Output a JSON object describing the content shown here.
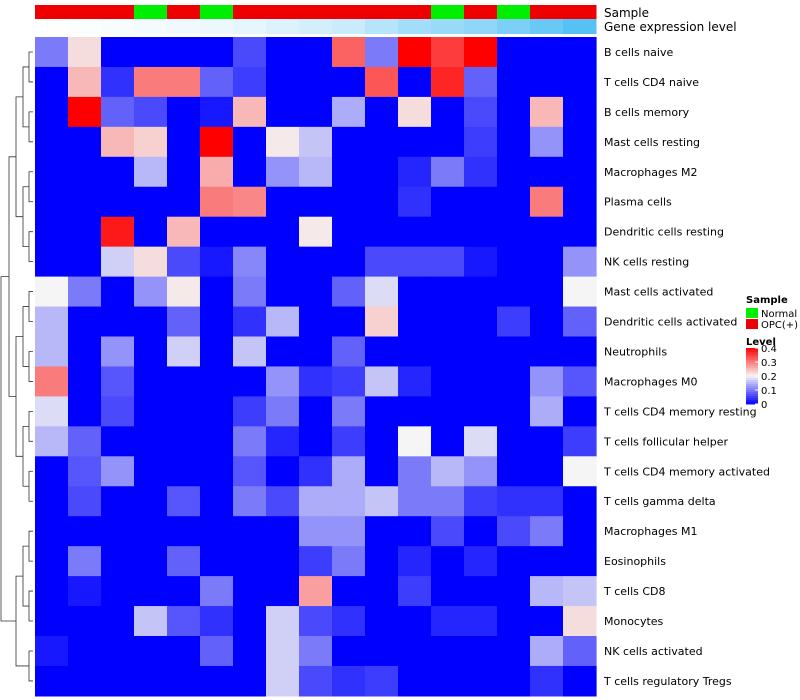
{
  "chart_data": {
    "type": "heatmap",
    "annotation_tracks": [
      "Sample",
      "Gene expression level"
    ],
    "sample_groups": [
      "OPC",
      "OPC",
      "OPC",
      "Normal",
      "OPC",
      "Normal",
      "OPC",
      "OPC",
      "OPC",
      "OPC",
      "OPC",
      "OPC",
      "Normal",
      "OPC",
      "Normal",
      "OPC",
      "OPC"
    ],
    "expression_track": [
      0.02,
      0.04,
      0.06,
      0.08,
      0.1,
      0.12,
      0.15,
      0.2,
      0.25,
      0.3,
      0.4,
      0.5,
      0.55,
      0.6,
      0.7,
      0.8,
      0.9
    ],
    "rows": [
      "B cells naive",
      "T cells CD4 naive",
      "B cells memory",
      "Mast cells resting",
      "Macrophages M2",
      "Plasma cells",
      "Dendritic cells resting",
      "NK cells resting",
      "Mast cells activated",
      "Dendritic cells activated",
      "Neutrophils",
      "Macrophages M0",
      "T cells CD4 memory resting",
      "T cells follicular helper",
      "T cells CD4 memory activated",
      "T cells gamma delta",
      "Macrophages M1",
      "Eosinophils",
      "T cells CD8",
      "Monocytes",
      "NK cells activated",
      "T cells regulatory  Tregs"
    ],
    "values": [
      [
        0.1,
        0.22,
        0,
        0,
        0,
        0,
        0.06,
        0,
        0,
        0.32,
        0.1,
        0.4,
        0.35,
        0.4,
        0,
        0,
        0
      ],
      [
        0,
        0.25,
        0.04,
        0.3,
        0.3,
        0.08,
        0.05,
        0,
        0,
        0,
        0.33,
        0,
        0.37,
        0.08,
        0,
        0,
        0
      ],
      [
        0,
        0.4,
        0.08,
        0.06,
        0,
        0.02,
        0.25,
        0,
        0,
        0.14,
        0,
        0.22,
        0,
        0.06,
        0,
        0.25,
        0
      ],
      [
        0,
        0,
        0.25,
        0.23,
        0,
        0.4,
        0,
        0.21,
        0.16,
        0,
        0,
        0,
        0,
        0.05,
        0,
        0.12,
        0
      ],
      [
        0,
        0,
        0,
        0.15,
        0,
        0.26,
        0,
        0.12,
        0.15,
        0,
        0,
        0.03,
        0.1,
        0.04,
        0,
        0,
        0
      ],
      [
        0,
        0,
        0,
        0,
        0,
        0.3,
        0.29,
        0,
        0,
        0,
        0,
        0.04,
        0,
        0,
        0,
        0.3,
        0
      ],
      [
        0,
        0,
        0.38,
        0,
        0.25,
        0,
        0,
        0,
        0.21,
        0,
        0,
        0,
        0,
        0,
        0,
        0,
        0
      ],
      [
        0,
        0,
        0.17,
        0.22,
        0.06,
        0.02,
        0.11,
        0,
        0,
        0,
        0.06,
        0.06,
        0.06,
        0.02,
        0,
        0,
        0.12
      ],
      [
        0.2,
        0.1,
        0,
        0.12,
        0.21,
        0,
        0.1,
        0,
        0,
        0.08,
        0.18,
        0,
        0,
        0,
        0,
        0,
        0.2
      ],
      [
        0.15,
        0,
        0,
        0,
        0.08,
        0,
        0.04,
        0.15,
        0,
        0,
        0.23,
        0,
        0,
        0,
        0.05,
        0,
        0.08
      ],
      [
        0.15,
        0,
        0.12,
        0,
        0.17,
        0,
        0.16,
        0,
        0,
        0.08,
        0,
        0,
        0,
        0,
        0,
        0,
        0
      ],
      [
        0.3,
        0,
        0.07,
        0,
        0,
        0,
        0,
        0.12,
        0.04,
        0.05,
        0.16,
        0.03,
        0,
        0,
        0,
        0.12,
        0.07
      ],
      [
        0.18,
        0,
        0.06,
        0,
        0,
        0,
        0.05,
        0.1,
        0,
        0.1,
        0,
        0,
        0,
        0,
        0,
        0.14,
        0
      ],
      [
        0.15,
        0.08,
        0,
        0,
        0,
        0,
        0.1,
        0.03,
        0,
        0.05,
        0,
        0.2,
        0,
        0.18,
        0,
        0,
        0.05
      ],
      [
        0,
        0.07,
        0.12,
        0,
        0,
        0,
        0.07,
        0,
        0.04,
        0.14,
        0,
        0.1,
        0.15,
        0.12,
        0,
        0,
        0.2
      ],
      [
        0,
        0.06,
        0,
        0,
        0.07,
        0,
        0.1,
        0.06,
        0.14,
        0.14,
        0.16,
        0.1,
        0.1,
        0.05,
        0.04,
        0.04,
        0
      ],
      [
        0,
        0,
        0,
        0,
        0,
        0,
        0,
        0,
        0.12,
        0.12,
        0,
        0,
        0.06,
        0,
        0.06,
        0.1,
        0
      ],
      [
        0,
        0.1,
        0,
        0,
        0.08,
        0,
        0,
        0,
        0.05,
        0.1,
        0,
        0.03,
        0,
        0.03,
        0,
        0,
        0
      ],
      [
        0,
        0.02,
        0,
        0,
        0,
        0.1,
        0,
        0,
        0.27,
        0,
        0,
        0.05,
        0,
        0,
        0,
        0.15,
        0.16
      ],
      [
        0,
        0,
        0,
        0.16,
        0.07,
        0.04,
        0,
        0.17,
        0.06,
        0.04,
        0,
        0,
        0.03,
        0.03,
        0,
        0,
        0.22
      ],
      [
        0.02,
        0,
        0,
        0,
        0,
        0.08,
        0,
        0.17,
        0.1,
        0,
        0,
        0,
        0,
        0,
        0,
        0.14,
        0.08
      ],
      [
        0,
        0,
        0,
        0,
        0,
        0,
        0,
        0.17,
        0.06,
        0.04,
        0.05,
        0,
        0,
        0,
        0,
        0.04,
        0
      ]
    ],
    "color_scale": {
      "domain": [
        0,
        0.2,
        0.4
      ],
      "colors": [
        "#0000ff",
        "#f5f5f5",
        "#ff0000"
      ]
    },
    "legend": {
      "sample_title": "Sample",
      "sample_items": [
        {
          "label": "Normal",
          "color": "#00ee00"
        },
        {
          "label": "OPC(+)",
          "color": "#ee0000"
        }
      ],
      "level_title": "Level",
      "level_ticks": [
        "0.4",
        "0.3",
        "0.2",
        "0.1",
        "0"
      ],
      "level_tick_values": [
        0.4,
        0.3,
        0.2,
        0.1,
        0
      ]
    },
    "group_colors": {
      "OPC": "#ee0000",
      "Normal": "#00ee00"
    },
    "track_colors": [
      "#ffffff",
      "#55c1f5"
    ]
  }
}
